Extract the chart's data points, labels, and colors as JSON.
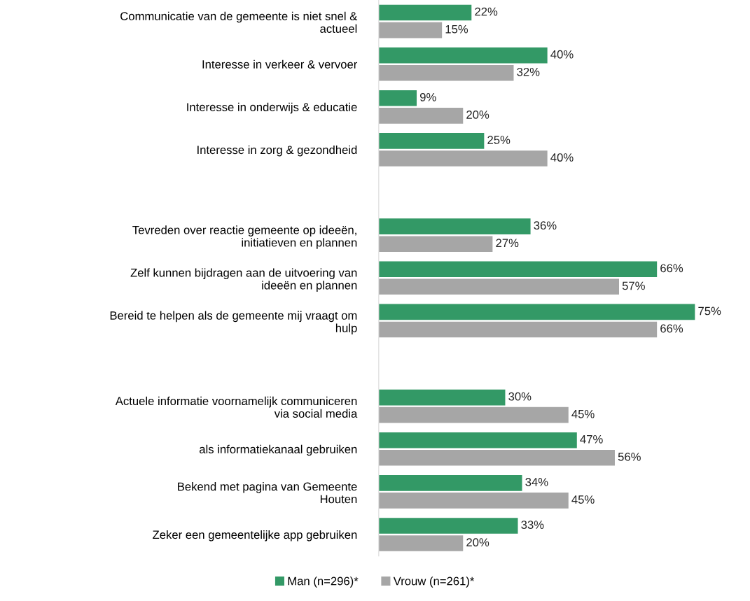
{
  "chart_data": {
    "type": "bar",
    "orientation": "horizontal",
    "tick_labels": "y",
    "legend": "bottom",
    "categories": [
      "Communicatie van de gemeente is niet snel &\nactueel",
      "Interesse in verkeer & vervoer",
      "Interesse in onderwijs & educatie",
      "Interesse in zorg & gezondheid",
      null,
      "Tevreden over reactie gemeente op ideeën,\ninitiatieven en plannen",
      "Zelf kunnen bijdragen aan de uitvoering van\nideeën en plannen",
      "Bereid te helpen als de gemeente mij vraagt om\nhulp",
      null,
      "Actuele informatie voornamelijk communiceren\nvia social media",
      "als informatiekanaal gebruiken",
      "Bekend met pagina van Gemeente\nHouten",
      "Zeker een gemeentelijke app gebruiken"
    ],
    "series": [
      {
        "name": "Man (n=296)*",
        "color": "#339966",
        "values": [
          22,
          40,
          9,
          25,
          null,
          36,
          66,
          75,
          null,
          30,
          47,
          34,
          33
        ],
        "value_labels": [
          "22%",
          "40%",
          "9%",
          "25%",
          null,
          "36%",
          "66%",
          "75%",
          null,
          "30%",
          "47%",
          "34%",
          "33%"
        ]
      },
      {
        "name": "Vrouw (n=261)*",
        "color": "#a6a6a6",
        "values": [
          15,
          32,
          20,
          40,
          null,
          27,
          57,
          66,
          null,
          45,
          56,
          45,
          20
        ],
        "value_labels": [
          "15%",
          "32%",
          "20%",
          "40%",
          null,
          "27%",
          "57%",
          "66%",
          null,
          "45%",
          "56%",
          "45%",
          "20%"
        ]
      }
    ]
  }
}
